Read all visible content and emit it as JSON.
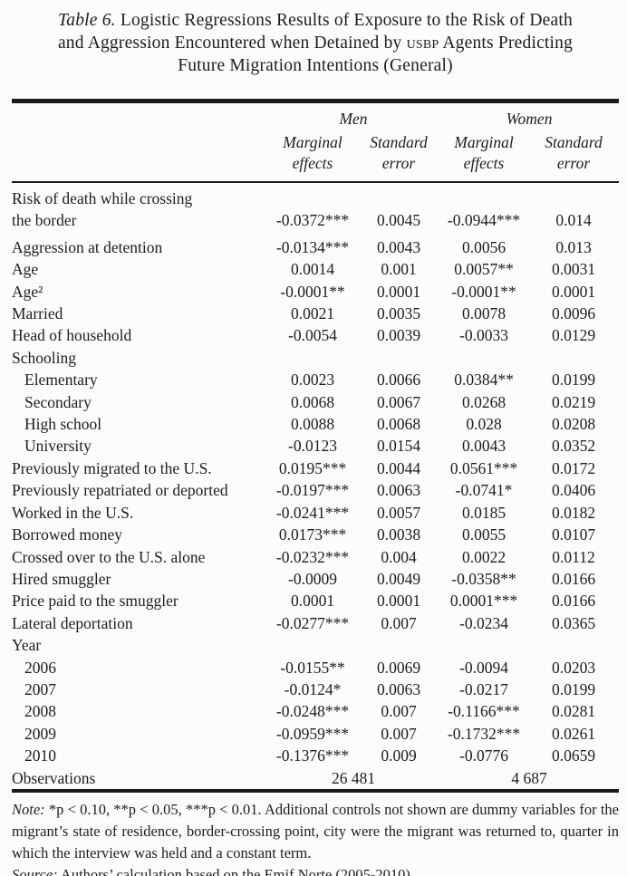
{
  "title": {
    "table_label": "Table 6.",
    "line1_rest": " Logistic Regressions Results of Exposure to the Risk of Death",
    "line2_pre": "and Aggression Encountered when Detained by ",
    "usbp": "USBP",
    "line2_post": " Agents Predicting",
    "line3": "Future Migration Intentions (General)"
  },
  "table": {
    "groups": [
      "Men",
      "Women"
    ],
    "columns": [
      "Marginal effects",
      "Standard error",
      "Marginal effects",
      "Standard error"
    ],
    "rows": [
      {
        "label": "Risk of death while crossing\nthe border",
        "values": [
          "-0.0372***",
          "0.0045",
          "-0.0944***",
          "0.014"
        ]
      },
      {
        "label": "Aggression at detention",
        "values": [
          "-0.0134***",
          "0.0043",
          "0.0056",
          "0.013"
        ]
      },
      {
        "label": "Age",
        "values": [
          "0.0014",
          "0.001",
          "0.0057**",
          "0.0031"
        ]
      },
      {
        "label": "Age²",
        "values": [
          "-0.0001**",
          "0.0001",
          "-0.0001**",
          "0.0001"
        ]
      },
      {
        "label": "Married",
        "values": [
          "0.0021",
          "0.0035",
          "0.0078",
          "0.0096"
        ]
      },
      {
        "label": "Head of household",
        "values": [
          "-0.0054",
          "0.0039",
          "-0.0033",
          "0.0129"
        ]
      },
      {
        "label": "Schooling",
        "type": "group"
      },
      {
        "label": "Elementary",
        "indent": true,
        "values": [
          "0.0023",
          "0.0066",
          "0.0384**",
          "0.0199"
        ]
      },
      {
        "label": "Secondary",
        "indent": true,
        "values": [
          "0.0068",
          "0.0067",
          "0.0268",
          "0.0219"
        ]
      },
      {
        "label": "High school",
        "indent": true,
        "values": [
          "0.0088",
          "0.0068",
          "0.028",
          "0.0208"
        ]
      },
      {
        "label": "University",
        "indent": true,
        "values": [
          "-0.0123",
          "0.0154",
          "0.0043",
          "0.0352"
        ]
      },
      {
        "label": "Previously migrated to the U.S.",
        "values": [
          "0.0195***",
          "0.0044",
          "0.0561***",
          "0.0172"
        ]
      },
      {
        "label": "Previously repatriated or deported",
        "values": [
          "-0.0197***",
          "0.0063",
          "-0.0741*",
          "0.0406"
        ]
      },
      {
        "label": "Worked in the U.S.",
        "values": [
          "-0.0241***",
          "0.0057",
          "0.0185",
          "0.0182"
        ]
      },
      {
        "label": "Borrowed money",
        "values": [
          "0.0173***",
          "0.0038",
          "0.0055",
          "0.0107"
        ]
      },
      {
        "label": "Crossed over to the U.S. alone",
        "values": [
          "-0.0232***",
          "0.004",
          "0.0022",
          "0.0112"
        ]
      },
      {
        "label": "Hired smuggler",
        "values": [
          "-0.0009",
          "0.0049",
          "-0.0358**",
          "0.0166"
        ]
      },
      {
        "label": "Price paid to the smuggler",
        "values": [
          "0.0001",
          "0.0001",
          "0.0001***",
          "0.0166"
        ]
      },
      {
        "label": "Lateral deportation",
        "values": [
          "-0.0277***",
          "0.007",
          "-0.0234",
          "0.0365"
        ]
      },
      {
        "label": "Year",
        "type": "group"
      },
      {
        "label": "2006",
        "indent": true,
        "values": [
          "-0.0155**",
          "0.0069",
          "-0.0094",
          "0.0203"
        ]
      },
      {
        "label": "2007",
        "indent": true,
        "values": [
          "-0.0124*",
          "0.0063",
          "-0.0217",
          "0.0199"
        ]
      },
      {
        "label": "2008",
        "indent": true,
        "values": [
          "-0.0248***",
          "0.007",
          "-0.1166***",
          "0.0281"
        ]
      },
      {
        "label": "2009",
        "indent": true,
        "values": [
          "-0.0959***",
          "0.007",
          "-0.1732***",
          "0.0261"
        ]
      },
      {
        "label": "2010",
        "indent": true,
        "values": [
          "-0.1376***",
          "0.009",
          "-0.0776",
          "0.0659"
        ]
      },
      {
        "label": "Observations",
        "type": "span",
        "men": "26 481",
        "women": "4 687"
      }
    ]
  },
  "notes": {
    "note_label": "Note:",
    "note_text": " *p < 0.10, **p < 0.05, ***p < 0.01. Additional controls not shown are dummy variables for the migrant’s state of residence, border-crossing point, city were the migrant was returned to, quarter in which the interview was held and a constant term.",
    "source_label": "Source:",
    "source_text": " Authors’ calculation based on the Emif Norte (2005-2010)."
  }
}
